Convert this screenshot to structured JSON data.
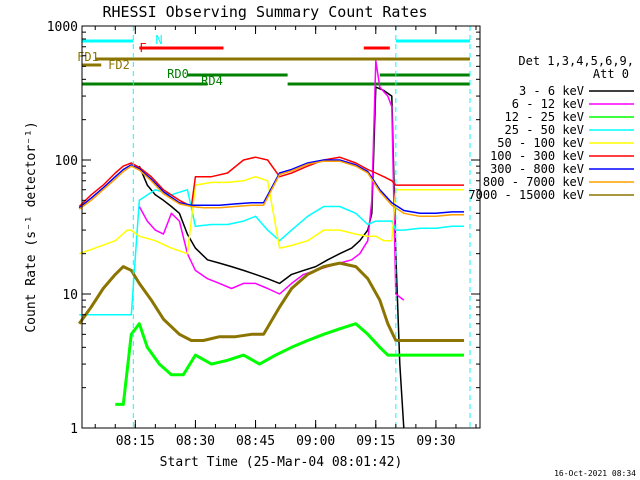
{
  "chart_data": {
    "type": "line",
    "title": "RHESSI Observing Summary Count Rates",
    "xlabel": "Start Time (25-Mar-04 08:01:42)",
    "ylabel": "Count Rate (s⁻¹ detector⁻¹)",
    "y_scale": "log",
    "ylim": [
      1,
      1000
    ],
    "xlim": [
      "08:01:42",
      "09:41:00"
    ],
    "x_ticks": [
      "08:15",
      "08:30",
      "08:45",
      "09:00",
      "09:15",
      "09:30"
    ],
    "y_ticks": [
      "1",
      "10",
      "100",
      "1000"
    ],
    "grid": false,
    "legend_position": "right",
    "legend_header": [
      "Det 1,3,4,5,6,9,",
      "Att 0"
    ],
    "timestamp": "16-Oct-2021 08:34",
    "series": [
      {
        "name": "3 - 6 keV",
        "color": "#000000",
        "x": [
          "08:01",
          "08:08",
          "08:12",
          "08:14",
          "08:16",
          "08:18",
          "08:20",
          "08:22",
          "08:24",
          "08:26",
          "08:28",
          "08:30",
          "08:33",
          "08:36",
          "08:39",
          "08:42",
          "08:45",
          "08:48",
          "08:51",
          "08:54",
          "08:57",
          "09:00",
          "09:03",
          "09:06",
          "09:09",
          "09:11",
          "09:13",
          "09:14",
          "09:15",
          "09:17",
          "09:19",
          "09:20",
          "09:21",
          "09:22"
        ],
        "y": [
          0,
          0,
          0,
          0,
          90,
          65,
          55,
          50,
          45,
          40,
          28,
          22,
          18,
          17,
          16,
          15,
          14,
          13,
          12,
          14,
          15,
          16,
          18,
          20,
          22,
          25,
          30,
          40,
          350,
          330,
          300,
          20,
          3,
          1
        ]
      },
      {
        "name": "6 - 12 keV",
        "color": "#ff00ff",
        "x": [
          "08:01",
          "08:08",
          "08:12",
          "08:14",
          "08:16",
          "08:18",
          "08:20",
          "08:22",
          "08:24",
          "08:26",
          "08:28",
          "08:30",
          "08:33",
          "08:36",
          "08:39",
          "08:42",
          "08:45",
          "08:48",
          "08:51",
          "08:54",
          "08:57",
          "09:00",
          "09:03",
          "09:06",
          "09:09",
          "09:11",
          "09:13",
          "09:14",
          "09:15",
          "09:16",
          "09:18",
          "09:19",
          "09:20",
          "09:22"
        ],
        "y": [
          0,
          0,
          0,
          0,
          45,
          35,
          30,
          28,
          40,
          35,
          20,
          15,
          13,
          12,
          11,
          12,
          12,
          11,
          10,
          12,
          14,
          15,
          16,
          17,
          18,
          20,
          25,
          50,
          550,
          350,
          300,
          250,
          10,
          9
        ]
      },
      {
        "name": "12 - 25 keV",
        "color": "#00ff00",
        "x": [
          "08:01",
          "08:07",
          "08:10",
          "08:12",
          "08:14",
          "08:16",
          "08:18",
          "08:21",
          "08:24",
          "08:27",
          "08:30",
          "08:34",
          "08:38",
          "08:42",
          "08:46",
          "08:50",
          "08:54",
          "08:58",
          "09:02",
          "09:06",
          "09:10",
          "09:13",
          "09:16",
          "09:18",
          "09:20",
          "09:22",
          "09:26",
          "09:30",
          "09:34",
          "09:37"
        ],
        "y": [
          0,
          0,
          1.5,
          1.5,
          5,
          6,
          4,
          3,
          2.5,
          2.5,
          3.5,
          3,
          3.2,
          3.5,
          3,
          3.5,
          4,
          4.5,
          5,
          5.5,
          6,
          5,
          4,
          3.5,
          3.5,
          3.5,
          3.5,
          3.5,
          3.5,
          3.5
        ]
      },
      {
        "name": "25 - 50 keV",
        "color": "#00ffff",
        "x": [
          "08:01",
          "08:10",
          "08:13",
          "08:14",
          "08:16",
          "08:20",
          "08:24",
          "08:28",
          "08:30",
          "08:34",
          "08:38",
          "08:42",
          "08:45",
          "08:48",
          "08:51",
          "08:54",
          "08:58",
          "09:02",
          "09:06",
          "09:10",
          "09:13",
          "09:15",
          "09:17",
          "09:19",
          "09:20",
          "09:22",
          "09:26",
          "09:30",
          "09:34",
          "09:37"
        ],
        "y": [
          7,
          7,
          7,
          7,
          50,
          60,
          55,
          60,
          32,
          33,
          33,
          35,
          38,
          30,
          25,
          30,
          38,
          45,
          45,
          40,
          33,
          35,
          35,
          35,
          30,
          30,
          31,
          31,
          32,
          32
        ]
      },
      {
        "name": "50 - 100 keV",
        "color": "#ffff00",
        "x": [
          "08:01",
          "08:05",
          "08:10",
          "08:13",
          "08:14",
          "08:16",
          "08:20",
          "08:24",
          "08:28",
          "08:30",
          "08:34",
          "08:38",
          "08:42",
          "08:45",
          "08:48",
          "08:51",
          "08:54",
          "08:58",
          "09:02",
          "09:06",
          "09:10",
          "09:13",
          "09:15",
          "09:17",
          "09:19",
          "09:20",
          "09:22",
          "09:26",
          "09:30",
          "09:34",
          "09:37"
        ],
        "y": [
          20,
          22,
          25,
          30,
          30,
          27,
          25,
          22,
          20,
          65,
          68,
          68,
          70,
          75,
          70,
          22,
          23,
          25,
          30,
          30,
          28,
          27,
          27,
          25,
          25,
          60,
          60,
          60,
          60,
          60,
          60
        ]
      },
      {
        "name": "100 - 300 keV",
        "color": "#ff0000",
        "x": [
          "08:01",
          "08:04",
          "08:07",
          "08:10",
          "08:12",
          "08:14",
          "08:16",
          "08:19",
          "08:22",
          "08:26",
          "08:29",
          "08:30",
          "08:34",
          "08:38",
          "08:42",
          "08:45",
          "08:48",
          "08:51",
          "08:54",
          "08:58",
          "09:02",
          "09:06",
          "09:10",
          "09:13",
          "09:15",
          "09:17",
          "09:19",
          "09:20",
          "09:22",
          "09:26",
          "09:30",
          "09:34",
          "09:37"
        ],
        "y": [
          45,
          55,
          65,
          80,
          90,
          95,
          88,
          75,
          60,
          50,
          45,
          75,
          75,
          80,
          100,
          105,
          100,
          75,
          80,
          90,
          100,
          105,
          95,
          85,
          80,
          75,
          70,
          65,
          65,
          65,
          65,
          65,
          65
        ]
      },
      {
        "name": "300 - 800 keV",
        "color": "#0000ff",
        "x": [
          "08:01",
          "08:04",
          "08:07",
          "08:10",
          "08:12",
          "08:14",
          "08:16",
          "08:19",
          "08:22",
          "08:26",
          "08:29",
          "08:32",
          "08:36",
          "08:40",
          "08:44",
          "08:47",
          "08:51",
          "08:54",
          "08:58",
          "09:02",
          "09:06",
          "09:10",
          "09:13",
          "09:16",
          "09:19",
          "09:22",
          "09:26",
          "09:30",
          "09:34",
          "09:37"
        ],
        "y": [
          44,
          52,
          62,
          75,
          85,
          92,
          86,
          72,
          58,
          48,
          46,
          46,
          46,
          47,
          48,
          48,
          80,
          85,
          95,
          100,
          100,
          92,
          82,
          60,
          48,
          42,
          40,
          40,
          41,
          41
        ]
      },
      {
        "name": "800 - 7000 keV",
        "color": "#ff9f00",
        "x": [
          "08:01",
          "08:04",
          "08:07",
          "08:10",
          "08:12",
          "08:14",
          "08:16",
          "08:19",
          "08:22",
          "08:26",
          "08:29",
          "08:32",
          "08:36",
          "08:40",
          "08:44",
          "08:47",
          "08:51",
          "08:54",
          "08:58",
          "09:02",
          "09:06",
          "09:10",
          "09:13",
          "09:16",
          "09:19",
          "09:22",
          "09:26",
          "09:30",
          "09:34",
          "09:37"
        ],
        "y": [
          43,
          50,
          60,
          72,
          82,
          90,
          84,
          70,
          56,
          47,
          45,
          44,
          44,
          45,
          46,
          46,
          78,
          83,
          93,
          98,
          98,
          90,
          80,
          58,
          46,
          40,
          38,
          38,
          39,
          39
        ]
      },
      {
        "name": "7000 - 15000 keV",
        "color": "#8b7500",
        "x": [
          "08:01",
          "08:04",
          "08:07",
          "08:10",
          "08:12",
          "08:14",
          "08:16",
          "08:19",
          "08:22",
          "08:26",
          "08:29",
          "08:32",
          "08:36",
          "08:40",
          "08:44",
          "08:47",
          "08:51",
          "08:54",
          "08:58",
          "09:02",
          "09:06",
          "09:10",
          "09:13",
          "09:16",
          "09:18",
          "09:20",
          "09:22",
          "09:26",
          "09:30",
          "09:34",
          "09:37"
        ],
        "y": [
          6,
          8,
          11,
          14,
          16,
          15,
          12,
          9,
          6.5,
          5,
          4.5,
          4.5,
          4.8,
          4.8,
          5,
          5,
          8,
          11,
          14,
          16,
          17,
          16,
          13,
          9,
          6,
          4.5,
          4.5,
          4.5,
          4.5,
          4.5,
          4.5
        ]
      }
    ],
    "annotations": {
      "vertical_lines": [
        "08:14:30",
        "09:20:00",
        "09:38:30"
      ],
      "bars": [
        {
          "label": "N",
          "color": "#00ffff",
          "segments": [
            [
              "08:01:42",
              "08:14:30"
            ],
            [
              "09:20:00",
              "09:38:30"
            ]
          ]
        },
        {
          "label": "F",
          "color": "#ff0000",
          "segments": [
            [
              "08:16:00",
              "08:37:00"
            ],
            [
              "09:12:00",
              "09:18:30"
            ]
          ]
        },
        {
          "label": "FD1",
          "color": "#8b7500",
          "segments": [
            [
              "08:05:00",
              "09:38:30"
            ]
          ]
        },
        {
          "label": "FD2",
          "color": "#8b7500",
          "segments": [
            [
              "08:01:42",
              "08:06:30"
            ]
          ]
        },
        {
          "label": "RD0",
          "color": "#008000",
          "segments": [
            [
              "08:28:00",
              "08:53:00"
            ],
            [
              "09:16:00",
              "09:38:30"
            ]
          ]
        },
        {
          "label": "RD4",
          "color": "#008000",
          "segments": [
            [
              "08:01:42",
              "08:33:00"
            ],
            [
              "08:53:00",
              "09:38:30"
            ]
          ]
        }
      ]
    }
  }
}
